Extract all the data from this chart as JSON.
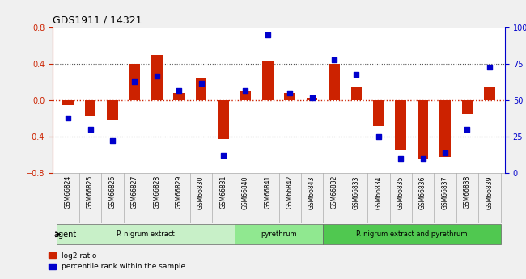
{
  "title": "GDS1911 / 14321",
  "samples": [
    "GSM66824",
    "GSM66825",
    "GSM66826",
    "GSM66827",
    "GSM66828",
    "GSM66829",
    "GSM66830",
    "GSM66831",
    "GSM66840",
    "GSM66841",
    "GSM66842",
    "GSM66843",
    "GSM66832",
    "GSM66833",
    "GSM66834",
    "GSM66835",
    "GSM66836",
    "GSM66837",
    "GSM66838",
    "GSM66839"
  ],
  "log2_ratio": [
    -0.05,
    -0.17,
    -0.22,
    0.4,
    0.5,
    0.08,
    0.25,
    -0.43,
    0.1,
    0.44,
    0.08,
    0.03,
    0.4,
    0.15,
    -0.28,
    -0.55,
    -0.65,
    -0.62,
    -0.15,
    0.15
  ],
  "pct_rank": [
    38,
    30,
    22,
    63,
    67,
    57,
    62,
    12,
    57,
    95,
    55,
    52,
    78,
    68,
    25,
    10,
    10,
    14,
    30,
    73
  ],
  "ylim": [
    -0.8,
    0.8
  ],
  "yticks_left": [
    -0.8,
    -0.4,
    0.0,
    0.4,
    0.8
  ],
  "yticks_right": [
    0,
    25,
    50,
    75,
    100
  ],
  "bar_color": "#cc2200",
  "dot_color": "#0000cc",
  "zero_line_color": "#cc2200",
  "dotted_line_color": "#555555",
  "groups": [
    {
      "label": "P. nigrum extract",
      "start": 0,
      "end": 8,
      "color": "#c8f0c8"
    },
    {
      "label": "pyrethrum",
      "start": 8,
      "end": 12,
      "color": "#90e890"
    },
    {
      "label": "P. nigrum extract and pyrethrum",
      "start": 12,
      "end": 20,
      "color": "#50c850"
    }
  ],
  "legend_bar_label": "log2 ratio",
  "legend_dot_label": "percentile rank within the sample",
  "agent_label": "agent",
  "background_color": "#f0f0f0",
  "plot_bg": "#ffffff"
}
